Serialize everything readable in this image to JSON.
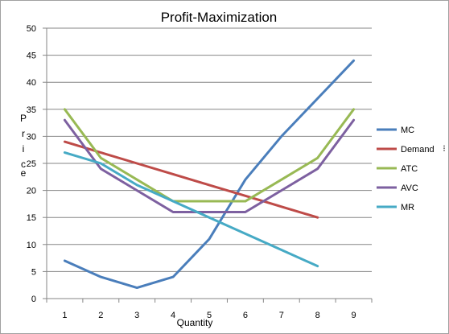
{
  "chart_data": {
    "type": "line",
    "title": "Profit-Maximization",
    "xlabel": "Quantity",
    "ylabel": "Price",
    "ylabel_top_letters": "P r i c",
    "ylabel_bottom_letter": "e",
    "x": [
      1,
      2,
      3,
      4,
      5,
      6,
      7,
      8,
      9
    ],
    "x_ticks": [
      "1",
      "2",
      "3",
      "4",
      "5",
      "6",
      "7",
      "8",
      "9"
    ],
    "ylim": [
      0,
      50
    ],
    "y_ticks": [
      "0",
      "5",
      "10",
      "15",
      "20",
      "25",
      "30",
      "35",
      "40",
      "45",
      "50"
    ],
    "grid": "horizontal",
    "legend_position": "right",
    "legend_stray_mark": "⁝",
    "series": [
      {
        "name": "MC",
        "color": "#4a7ebb",
        "values": [
          7,
          4,
          2,
          4,
          11,
          22,
          30,
          37,
          44
        ]
      },
      {
        "name": "Demand",
        "color": "#be4b48",
        "values": [
          29,
          27,
          25,
          23,
          21,
          19,
          17,
          15,
          null
        ]
      },
      {
        "name": "ATC",
        "color": "#98b954",
        "values": [
          35,
          26,
          22,
          18,
          18,
          18,
          22,
          26,
          35
        ]
      },
      {
        "name": "AVC",
        "color": "#7d60a0",
        "values": [
          33,
          24,
          20,
          16,
          16,
          16,
          20,
          24,
          33
        ]
      },
      {
        "name": "MR",
        "color": "#46aac5",
        "values": [
          27,
          25,
          21,
          18,
          15,
          12,
          9,
          6,
          null
        ]
      }
    ]
  }
}
